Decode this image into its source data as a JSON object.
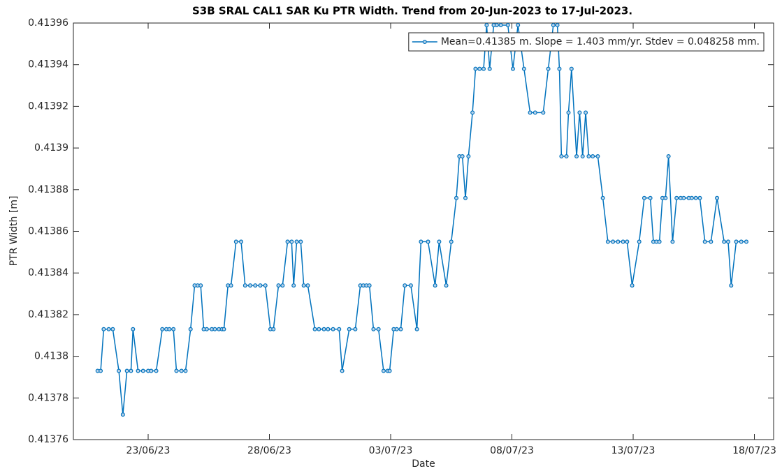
{
  "chart_data": {
    "type": "line",
    "title": "S3B SRAL CAL1 SAR Ku PTR Width. Trend from 20-Jun-2023 to 17-Jul-2023.",
    "x_label": "Date",
    "y_label": "PTR Width [m]",
    "legend": "northeast",
    "grid": false,
    "xlim": [
      "2023-06-19T22:00",
      "2023-07-18T19:00"
    ],
    "xticks": [
      {
        "value": "2023-06-23T00:00",
        "label": "23/06/23"
      },
      {
        "value": "2023-06-28T00:00",
        "label": "28/06/23"
      },
      {
        "value": "2023-07-03T00:00",
        "label": "03/07/23"
      },
      {
        "value": "2023-07-08T00:00",
        "label": "08/07/23"
      },
      {
        "value": "2023-07-13T00:00",
        "label": "13/07/23"
      },
      {
        "value": "2023-07-18T00:00",
        "label": "18/07/23"
      }
    ],
    "ylim": [
      0.41376,
      0.41396
    ],
    "yticks": [
      0.41376,
      0.41378,
      0.4138,
      0.41382,
      0.41384,
      0.41386,
      0.41388,
      0.4139,
      0.41392,
      0.41394,
      0.41396
    ],
    "x": [
      "2023-06-20T22:00",
      "2023-06-21T01:00",
      "2023-06-21T04:00",
      "2023-06-21T09:00",
      "2023-06-21T13:00",
      "2023-06-21T19:00",
      "2023-06-21T23:00",
      "2023-06-22T03:00",
      "2023-06-22T07:00",
      "2023-06-22T09:00",
      "2023-06-22T14:00",
      "2023-06-22T19:00",
      "2023-06-23T00:00",
      "2023-06-23T03:00",
      "2023-06-23T08:00",
      "2023-06-23T14:00",
      "2023-06-23T18:00",
      "2023-06-23T21:00",
      "2023-06-24T01:00",
      "2023-06-24T04:00",
      "2023-06-24T09:00",
      "2023-06-24T13:00",
      "2023-06-24T18:00",
      "2023-06-24T22:00",
      "2023-06-25T01:00",
      "2023-06-25T04:00",
      "2023-06-25T07:00",
      "2023-06-25T10:00",
      "2023-06-25T15:00",
      "2023-06-25T18:00",
      "2023-06-25T22:00",
      "2023-06-26T01:00",
      "2023-06-26T03:00",
      "2023-06-26T07:00",
      "2023-06-26T10:00",
      "2023-06-26T15:00",
      "2023-06-26T20:00",
      "2023-06-27T00:00",
      "2023-06-27T05:00",
      "2023-06-27T10:00",
      "2023-06-27T15:00",
      "2023-06-27T20:00",
      "2023-06-28T01:00",
      "2023-06-28T04:00",
      "2023-06-28T09:00",
      "2023-06-28T13:00",
      "2023-06-28T18:00",
      "2023-06-28T22:00",
      "2023-06-29T00:00",
      "2023-06-29T03:00",
      "2023-06-29T07:00",
      "2023-06-29T10:00",
      "2023-06-29T14:00",
      "2023-06-29T21:00",
      "2023-06-30T01:00",
      "2023-06-30T06:00",
      "2023-06-30T10:00",
      "2023-06-30T15:00",
      "2023-06-30T21:00",
      "2023-07-01T00:00",
      "2023-07-01T07:00",
      "2023-07-01T13:00",
      "2023-07-01T18:00",
      "2023-07-01T21:00",
      "2023-07-02T00:00",
      "2023-07-02T03:00",
      "2023-07-02T07:00",
      "2023-07-02T12:00",
      "2023-07-02T17:00",
      "2023-07-02T21:00",
      "2023-07-02T23:00",
      "2023-07-03T03:00",
      "2023-07-03T06:00",
      "2023-07-03T10:00",
      "2023-07-03T14:00",
      "2023-07-03T20:00",
      "2023-07-04T02:00",
      "2023-07-04T06:00",
      "2023-07-04T13:00",
      "2023-07-04T20:00",
      "2023-07-05T00:00",
      "2023-07-05T07:00",
      "2023-07-05T12:00",
      "2023-07-05T17:00",
      "2023-07-05T20:00",
      "2023-07-05T23:00",
      "2023-07-06T02:00",
      "2023-07-06T05:00",
      "2023-07-06T09:00",
      "2023-07-06T12:00",
      "2023-07-06T16:00",
      "2023-07-06T20:00",
      "2023-07-06T23:00",
      "2023-07-07T02:00",
      "2023-07-07T06:00",
      "2023-07-07T09:00",
      "2023-07-07T13:00",
      "2023-07-07T20:00",
      "2023-07-08T01:00",
      "2023-07-08T06:00",
      "2023-07-08T12:00",
      "2023-07-08T18:00",
      "2023-07-08T23:00",
      "2023-07-09T07:00",
      "2023-07-09T12:00",
      "2023-07-09T17:00",
      "2023-07-09T21:00",
      "2023-07-09T23:00",
      "2023-07-10T01:00",
      "2023-07-10T06:00",
      "2023-07-10T08:00",
      "2023-07-10T11:00",
      "2023-07-10T16:00",
      "2023-07-10T19:00",
      "2023-07-10T22:00",
      "2023-07-11T01:00",
      "2023-07-11T04:00",
      "2023-07-11T08:00",
      "2023-07-11T13:00",
      "2023-07-11T18:00",
      "2023-07-11T23:00",
      "2023-07-12T04:00",
      "2023-07-12T09:00",
      "2023-07-12T14:00",
      "2023-07-12T18:00",
      "2023-07-12T23:00",
      "2023-07-13T06:00",
      "2023-07-13T11:00",
      "2023-07-13T17:00",
      "2023-07-13T20:00",
      "2023-07-13T23:00",
      "2023-07-14T02:00",
      "2023-07-14T05:00",
      "2023-07-14T08:00",
      "2023-07-14T11:00",
      "2023-07-14T15:00",
      "2023-07-14T19:00",
      "2023-07-14T23:00",
      "2023-07-15T02:00",
      "2023-07-15T07:00",
      "2023-07-15T10:00",
      "2023-07-15T14:00",
      "2023-07-15T18:00",
      "2023-07-15T23:00",
      "2023-07-16T05:00",
      "2023-07-16T11:00",
      "2023-07-16T18:00",
      "2023-07-16T22:00",
      "2023-07-17T01:00",
      "2023-07-17T06:00",
      "2023-07-17T11:00",
      "2023-07-17T16:00"
    ],
    "series": [
      {
        "name": "Mean=0.41385 m. Slope = 1.403 mm/yr. Stdev = 0.048258 mm.",
        "color": "#0072bd",
        "values": [
          0.413793,
          0.413793,
          0.413813,
          0.413813,
          0.413813,
          0.413793,
          0.413772,
          0.413793,
          0.413793,
          0.413813,
          0.413793,
          0.413793,
          0.413793,
          0.413793,
          0.413793,
          0.413813,
          0.413813,
          0.413813,
          0.413813,
          0.413793,
          0.413793,
          0.413793,
          0.413813,
          0.413834,
          0.413834,
          0.413834,
          0.413813,
          0.413813,
          0.413813,
          0.413813,
          0.413813,
          0.413813,
          0.413813,
          0.413834,
          0.413834,
          0.413855,
          0.413855,
          0.413834,
          0.413834,
          0.413834,
          0.413834,
          0.413834,
          0.413813,
          0.413813,
          0.413834,
          0.413834,
          0.413855,
          0.413855,
          0.413834,
          0.413855,
          0.413855,
          0.413834,
          0.413834,
          0.413813,
          0.413813,
          0.413813,
          0.413813,
          0.413813,
          0.413813,
          0.413793,
          0.413813,
          0.413813,
          0.413834,
          0.413834,
          0.413834,
          0.413834,
          0.413813,
          0.413813,
          0.413793,
          0.413793,
          0.413793,
          0.413813,
          0.413813,
          0.413813,
          0.413834,
          0.413834,
          0.413813,
          0.413855,
          0.413855,
          0.413834,
          0.413855,
          0.413834,
          0.413855,
          0.413876,
          0.413896,
          0.413896,
          0.413876,
          0.413896,
          0.413917,
          0.413938,
          0.413938,
          0.413938,
          0.413959,
          0.413938,
          0.413959,
          0.413959,
          0.413959,
          0.413959,
          0.413938,
          0.413959,
          0.413938,
          0.413917,
          0.413917,
          0.413917,
          0.413938,
          0.413959,
          0.413959,
          0.413938,
          0.413896,
          0.413896,
          0.413917,
          0.413938,
          0.413896,
          0.413917,
          0.413896,
          0.413917,
          0.413896,
          0.413896,
          0.413896,
          0.413876,
          0.413855,
          0.413855,
          0.413855,
          0.413855,
          0.413855,
          0.413834,
          0.413855,
          0.413876,
          0.413876,
          0.413855,
          0.413855,
          0.413855,
          0.413876,
          0.413876,
          0.413896,
          0.413855,
          0.413876,
          0.413876,
          0.413876,
          0.413876,
          0.413876,
          0.413876,
          0.413876,
          0.413855,
          0.413855,
          0.413876,
          0.413855,
          0.413855,
          0.413834,
          0.413855,
          0.413855,
          0.413855
        ]
      }
    ]
  }
}
